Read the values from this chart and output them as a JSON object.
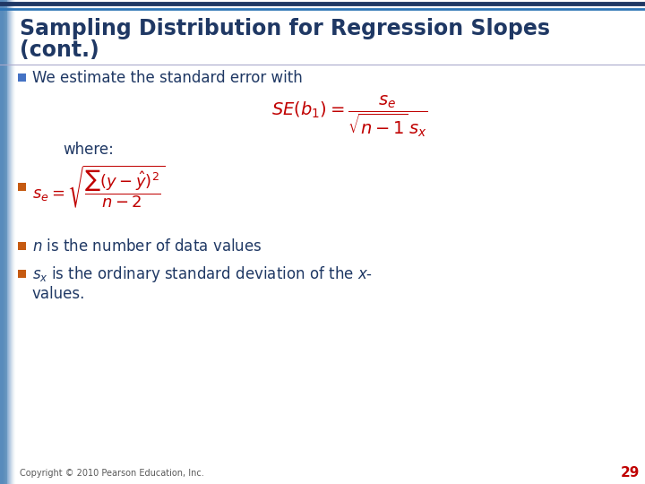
{
  "title_line1": "Sampling Distribution for Regression Slopes",
  "title_line2": "(cont.)",
  "title_color": "#1F3864",
  "title_fontsize": 17,
  "bg_color": "#FFFFFF",
  "left_bar_color": "#4E6B8C",
  "bullet_color": "#4472C4",
  "sub_bullet_color": "#C55A11",
  "formula_color": "#C00000",
  "text_color": "#1F3864",
  "footer_text": "Copyright © 2010 Pearson Education, Inc.",
  "footer_color": "#595959",
  "page_number": "29",
  "top_border_color1": "#1F3864",
  "top_border_color2": "#2E75B6",
  "title_bg_color": "#FFFFFF"
}
